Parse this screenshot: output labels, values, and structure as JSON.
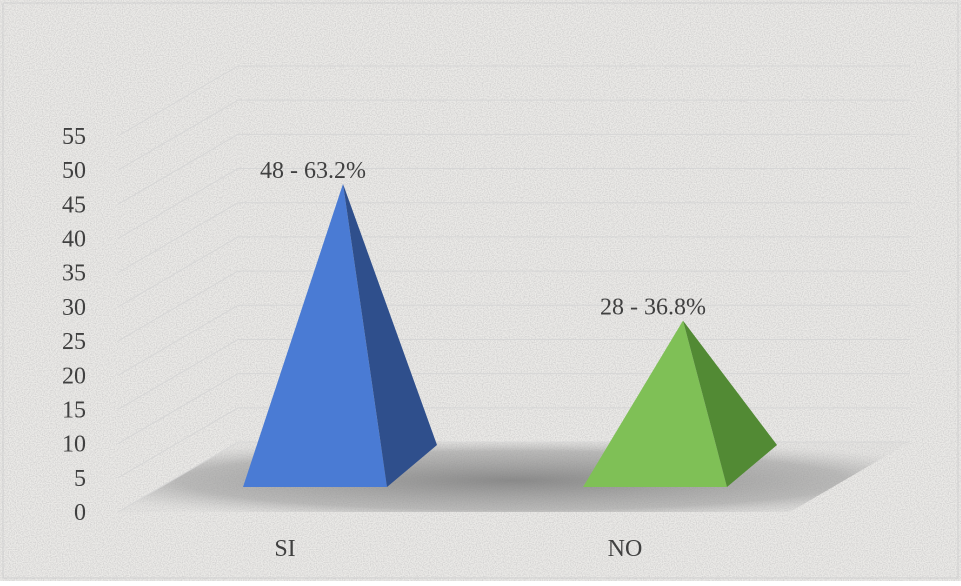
{
  "chart_data": {
    "type": "bar",
    "bar_shape": "3d-pyramid",
    "categories": [
      "SI",
      "NO"
    ],
    "values": [
      48,
      28
    ],
    "data_labels": [
      "48 - 63.2%",
      "28 - 36.8%"
    ],
    "ylim": [
      0,
      55
    ],
    "y_ticks": [
      0,
      5,
      10,
      15,
      20,
      25,
      30,
      35,
      40,
      45,
      50,
      55
    ],
    "grid": true,
    "legend": "none",
    "title": "",
    "xlabel": "",
    "ylabel": "",
    "colors": {
      "SI": "#4472C4",
      "NO": "#70AD47"
    }
  }
}
